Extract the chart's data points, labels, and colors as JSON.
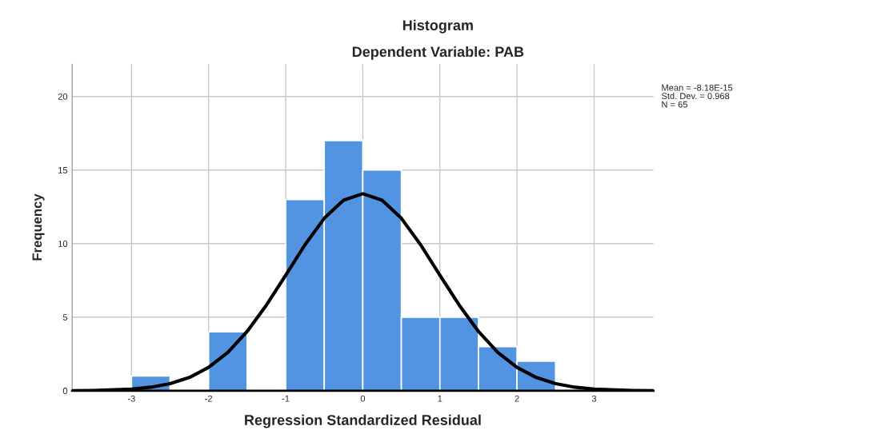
{
  "chart_data": {
    "type": "histogram",
    "title": "Histogram",
    "subtitle": "Dependent Variable: PAB",
    "xlabel": "Regression Standardized Residual",
    "ylabel": "Frequency",
    "bins": [
      -3,
      -2.5,
      -2,
      -1.5,
      -1,
      -0.5,
      0,
      0.5,
      1,
      1.5,
      2,
      2.5
    ],
    "values": [
      1,
      0,
      4,
      0,
      13,
      17,
      15,
      5,
      5,
      3,
      2
    ],
    "color": "#5294e2",
    "series": [
      {
        "type": "line",
        "color": "#000000",
        "x": [
          -3.77,
          -3.5,
          -3,
          -2.75,
          -2.5,
          -2.25,
          -2,
          -1.75,
          -1.5,
          -1.25,
          -1,
          -0.75,
          -0.5,
          -0.25,
          0,
          0.25,
          0.5,
          0.75,
          1,
          1.25,
          1.5,
          1.75,
          2,
          2.25,
          2.5,
          2.75,
          3,
          3.5,
          3.77
        ],
        "values": [
          0.0,
          0.02,
          0.11,
          0.24,
          0.48,
          0.9,
          1.59,
          2.61,
          4.03,
          5.82,
          7.85,
          9.92,
          11.72,
          12.95,
          13.39,
          12.95,
          11.72,
          9.92,
          7.85,
          5.82,
          4.03,
          2.61,
          1.59,
          0.9,
          0.48,
          0.24,
          0.11,
          0.02,
          0.0
        ]
      }
    ],
    "annotations": [
      "Mean = -8.18E-15",
      "Std. Dev. = 0.968",
      "N = 65"
    ],
    "xlim": [
      -3.77,
      3.77
    ],
    "ylim": [
      0,
      22.2
    ],
    "xticks": [
      -3,
      -2,
      -1,
      0,
      1,
      2,
      3
    ],
    "yticks": [
      0,
      5,
      10,
      15,
      20
    ],
    "grid": true,
    "legend": false
  }
}
